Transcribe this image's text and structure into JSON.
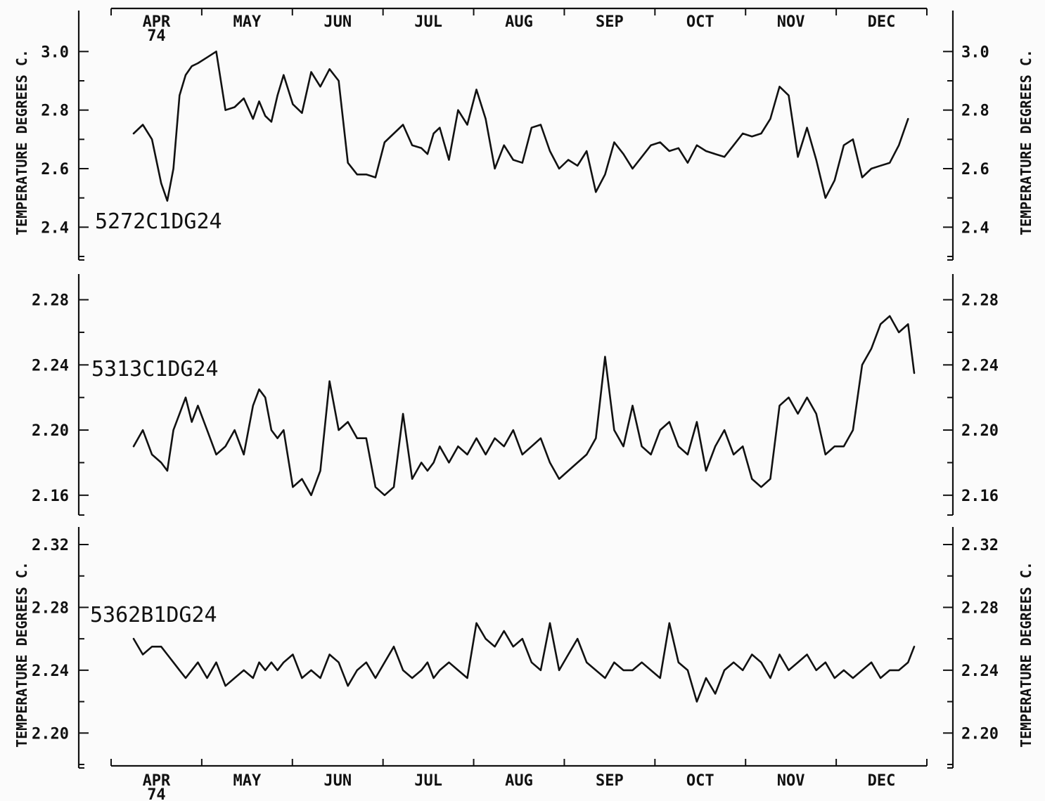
{
  "chart_data": {
    "type": "line",
    "x_axis": {
      "months": [
        "APR",
        "MAY",
        "JUN",
        "JUL",
        "AUG",
        "SEP",
        "OCT",
        "NOV",
        "DEC"
      ],
      "year_label": "74",
      "range": [
        0,
        255
      ]
    },
    "panels": [
      {
        "series_name": "5272C1DG24",
        "ylabel": "TEMPERATURE DEGREES C.",
        "yticks": [
          "2.4",
          "2.6",
          "2.8",
          "3.0"
        ],
        "ylim": [
          2.3,
          3.08
        ],
        "x": [
          0,
          3,
          6,
          9,
          11,
          13,
          15,
          17,
          19,
          21,
          24,
          27,
          30,
          33,
          36,
          39,
          41,
          43,
          45,
          47,
          49,
          52,
          55,
          58,
          61,
          64,
          67,
          70,
          73,
          76,
          79,
          82,
          85,
          88,
          91,
          94,
          96,
          98,
          100,
          103,
          106,
          109,
          112,
          115,
          118,
          121,
          124,
          127,
          130,
          133,
          136,
          139,
          142,
          145,
          148,
          151,
          154,
          157,
          160,
          163,
          166,
          169,
          172,
          175,
          178,
          181,
          184,
          187,
          190,
          193,
          196,
          199,
          202,
          205,
          208,
          211,
          214,
          217,
          220,
          223,
          226,
          229,
          232,
          235,
          238,
          241,
          244,
          247,
          250,
          253
        ],
        "values": [
          2.72,
          2.75,
          2.7,
          2.55,
          2.49,
          2.6,
          2.85,
          2.92,
          2.95,
          2.96,
          2.98,
          3.0,
          2.8,
          2.81,
          2.84,
          2.77,
          2.83,
          2.78,
          2.76,
          2.85,
          2.92,
          2.82,
          2.79,
          2.93,
          2.88,
          2.94,
          2.9,
          2.62,
          2.58,
          2.58,
          2.57,
          2.69,
          2.72,
          2.75,
          2.68,
          2.67,
          2.65,
          2.72,
          2.74,
          2.63,
          2.8,
          2.75,
          2.87,
          2.77,
          2.6,
          2.68,
          2.63,
          2.62,
          2.74,
          2.75,
          2.66,
          2.6,
          2.63,
          2.61,
          2.66,
          2.52,
          2.58,
          2.69,
          2.65,
          2.6,
          2.64,
          2.68,
          2.69,
          2.66,
          2.67,
          2.62,
          2.68,
          2.66,
          2.65,
          2.64,
          2.68,
          2.72,
          2.71,
          2.72,
          2.77,
          2.88,
          2.85,
          2.64,
          2.74,
          2.63,
          2.5,
          2.56,
          2.68,
          2.7,
          2.57,
          2.6,
          2.61,
          2.62,
          2.68,
          2.77
        ]
      },
      {
        "series_name": "5313C1DG24",
        "ylabel": "",
        "yticks": [
          "2.16",
          "2.20",
          "2.24",
          "2.28"
        ],
        "ylim": [
          2.15,
          2.285
        ],
        "x": [
          0,
          3,
          6,
          9,
          11,
          13,
          15,
          17,
          19,
          21,
          24,
          27,
          30,
          33,
          36,
          39,
          41,
          43,
          45,
          47,
          49,
          52,
          55,
          58,
          61,
          64,
          67,
          70,
          73,
          76,
          79,
          82,
          85,
          88,
          91,
          94,
          96,
          98,
          100,
          103,
          106,
          109,
          112,
          115,
          118,
          121,
          124,
          127,
          130,
          133,
          136,
          139,
          142,
          145,
          148,
          151,
          154,
          157,
          160,
          163,
          166,
          169,
          172,
          175,
          178,
          181,
          184,
          187,
          190,
          193,
          196,
          199,
          202,
          205,
          208,
          211,
          214,
          217,
          220,
          223,
          226,
          229,
          232,
          235,
          238,
          241,
          244,
          247,
          250,
          253,
          255
        ],
        "values": [
          2.19,
          2.2,
          2.185,
          2.18,
          2.175,
          2.2,
          2.21,
          2.22,
          2.205,
          2.215,
          2.2,
          2.185,
          2.19,
          2.2,
          2.185,
          2.215,
          2.225,
          2.22,
          2.2,
          2.195,
          2.2,
          2.165,
          2.17,
          2.16,
          2.175,
          2.23,
          2.2,
          2.205,
          2.195,
          2.195,
          2.165,
          2.16,
          2.165,
          2.21,
          2.17,
          2.18,
          2.175,
          2.18,
          2.19,
          2.18,
          2.19,
          2.185,
          2.195,
          2.185,
          2.195,
          2.19,
          2.2,
          2.185,
          2.19,
          2.195,
          2.18,
          2.17,
          2.175,
          2.18,
          2.185,
          2.195,
          2.245,
          2.2,
          2.19,
          2.215,
          2.19,
          2.185,
          2.2,
          2.205,
          2.19,
          2.185,
          2.205,
          2.175,
          2.19,
          2.2,
          2.185,
          2.19,
          2.17,
          2.165,
          2.17,
          2.215,
          2.22,
          2.21,
          2.22,
          2.21,
          2.185,
          2.19,
          2.19,
          2.2,
          2.24,
          2.25,
          2.265,
          2.27,
          2.26,
          2.265,
          2.235
        ]
      },
      {
        "series_name": "5362B1DG24",
        "ylabel": "TEMPERATURE DEGREES C.",
        "yticks": [
          "2.20",
          "2.24",
          "2.28",
          "2.32"
        ],
        "ylim": [
          2.18,
          2.32
        ],
        "x": [
          0,
          3,
          6,
          9,
          11,
          13,
          15,
          17,
          19,
          21,
          24,
          27,
          30,
          33,
          36,
          39,
          41,
          43,
          45,
          47,
          49,
          52,
          55,
          58,
          61,
          64,
          67,
          70,
          73,
          76,
          79,
          82,
          85,
          88,
          91,
          94,
          96,
          98,
          100,
          103,
          106,
          109,
          112,
          115,
          118,
          121,
          124,
          127,
          130,
          133,
          136,
          139,
          142,
          145,
          148,
          151,
          154,
          157,
          160,
          163,
          166,
          169,
          172,
          175,
          178,
          181,
          184,
          187,
          190,
          193,
          196,
          199,
          202,
          205,
          208,
          211,
          214,
          217,
          220,
          223,
          226,
          229,
          232,
          235,
          238,
          241,
          244,
          247,
          250,
          253,
          255
        ],
        "values": [
          2.26,
          2.25,
          2.255,
          2.255,
          2.25,
          2.245,
          2.24,
          2.235,
          2.24,
          2.245,
          2.235,
          2.245,
          2.23,
          2.235,
          2.24,
          2.235,
          2.245,
          2.24,
          2.245,
          2.24,
          2.245,
          2.25,
          2.235,
          2.24,
          2.235,
          2.25,
          2.245,
          2.23,
          2.24,
          2.245,
          2.235,
          2.245,
          2.255,
          2.24,
          2.235,
          2.24,
          2.245,
          2.235,
          2.24,
          2.245,
          2.24,
          2.235,
          2.27,
          2.26,
          2.255,
          2.265,
          2.255,
          2.26,
          2.245,
          2.24,
          2.27,
          2.24,
          2.25,
          2.26,
          2.245,
          2.24,
          2.235,
          2.245,
          2.24,
          2.24,
          2.245,
          2.24,
          2.235,
          2.27,
          2.245,
          2.24,
          2.22,
          2.235,
          2.225,
          2.24,
          2.245,
          2.24,
          2.25,
          2.245,
          2.235,
          2.25,
          2.24,
          2.245,
          2.25,
          2.24,
          2.245,
          2.235,
          2.24,
          2.235,
          2.24,
          2.245,
          2.235,
          2.24,
          2.24,
          2.245,
          2.255
        ]
      }
    ]
  }
}
